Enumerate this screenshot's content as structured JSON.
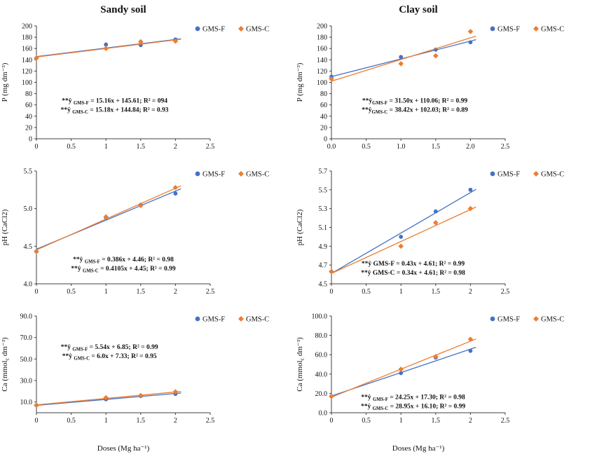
{
  "page": {
    "left_title": "Sandy soil",
    "right_title": "Clay soil"
  },
  "colors": {
    "series_gms_f": "#4472C4",
    "series_gms_c": "#ED7D31",
    "axis": "#404040",
    "text": "#111111"
  },
  "chart_data": [
    {
      "id": "p-sandy",
      "type": "scatter",
      "group": "Sandy soil",
      "ylabel": [
        {
          "t": "P (mg dm⁻³)"
        }
      ],
      "xlabel": "",
      "xlim": [
        0,
        2.5
      ],
      "ylim": [
        0,
        200
      ],
      "xticks": [
        {
          "v": 0,
          "l": "0"
        },
        {
          "v": 0.5,
          "l": "0.5"
        },
        {
          "v": 1,
          "l": "1"
        },
        {
          "v": 1.5,
          "l": "1.5"
        },
        {
          "v": 2,
          "l": "2"
        },
        {
          "v": 2.5,
          "l": "2.5"
        }
      ],
      "yticks": [
        {
          "v": 0,
          "l": "0"
        },
        {
          "v": 20,
          "l": "20"
        },
        {
          "v": 40,
          "l": "40"
        },
        {
          "v": 60,
          "l": "60"
        },
        {
          "v": 80,
          "l": "80"
        },
        {
          "v": 100,
          "l": "100"
        },
        {
          "v": 120,
          "l": "120"
        },
        {
          "v": 140,
          "l": "140"
        },
        {
          "v": 160,
          "l": "160"
        },
        {
          "v": 180,
          "l": "180"
        },
        {
          "v": 200,
          "l": "200"
        }
      ],
      "x": [
        0,
        1,
        1.5,
        2
      ],
      "series": [
        {
          "name": "GMS-F",
          "marker": "circle",
          "color": "#4472C4",
          "y": [
            143,
            167,
            166,
            176
          ],
          "fit": {
            "slope": 15.16,
            "intercept": 145.61,
            "r2": "094"
          }
        },
        {
          "name": "GMS-C",
          "marker": "diamond",
          "color": "#ED7D31",
          "y": [
            143,
            160,
            172,
            173
          ],
          "fit": {
            "slope": 15.18,
            "intercept": 144.84,
            "r2": "0.93"
          }
        }
      ],
      "annotation": {
        "fx": 0.45,
        "fy": 0.68,
        "lines": [
          [
            {
              "t": "**ŷ "
            },
            {
              "t": "GMS-F",
              "sub": true
            },
            {
              "t": " = 15.16x + 145.61; R² = 094"
            }
          ],
          [
            {
              "t": "**ŷ "
            },
            {
              "t": "GMS-C",
              "sub": true
            },
            {
              "t": " = 15.18x + 144.84; R² = 0.93"
            }
          ]
        ]
      }
    },
    {
      "id": "p-clay",
      "type": "scatter",
      "group": "Clay soil",
      "ylabel": [
        {
          "t": "P (mg dm⁻³)"
        }
      ],
      "xlabel": "",
      "xlim": [
        0,
        2.5
      ],
      "ylim": [
        0,
        200
      ],
      "xticks": [
        {
          "v": 0,
          "l": "0.0"
        },
        {
          "v": 0.5,
          "l": "0.5"
        },
        {
          "v": 1,
          "l": "1.0"
        },
        {
          "v": 1.5,
          "l": "1.5"
        },
        {
          "v": 2,
          "l": "2.0"
        },
        {
          "v": 2.5,
          "l": "2.5"
        }
      ],
      "yticks": [
        {
          "v": 0,
          "l": "0"
        },
        {
          "v": 20,
          "l": "20"
        },
        {
          "v": 40,
          "l": "40"
        },
        {
          "v": 60,
          "l": "60"
        },
        {
          "v": 80,
          "l": "80"
        },
        {
          "v": 100,
          "l": "100"
        },
        {
          "v": 120,
          "l": "120"
        },
        {
          "v": 140,
          "l": "140"
        },
        {
          "v": 160,
          "l": "160"
        },
        {
          "v": 180,
          "l": "180"
        },
        {
          "v": 200,
          "l": "200"
        }
      ],
      "x": [
        0,
        1,
        1.5,
        2
      ],
      "series": [
        {
          "name": "GMS-F",
          "marker": "circle",
          "color": "#4472C4",
          "y": [
            110,
            145,
            158,
            171
          ],
          "fit": {
            "slope": 31.5,
            "intercept": 110.06,
            "r2": "0.99"
          }
        },
        {
          "name": "GMS-C",
          "marker": "diamond",
          "color": "#ED7D31",
          "y": [
            106,
            133,
            147,
            190
          ],
          "fit": {
            "slope": 38.42,
            "intercept": 102.03,
            "r2": "0.89"
          }
        }
      ],
      "annotation": {
        "fx": 0.48,
        "fy": 0.68,
        "lines": [
          [
            {
              "t": "**ŷ"
            },
            {
              "t": "GMS-F",
              "sub": true
            },
            {
              "t": " = 31.50x + 110.06; R² = 0.99"
            }
          ],
          [
            {
              "t": "**ŷ"
            },
            {
              "t": "GMS-C",
              "sub": true
            },
            {
              "t": " = 38.42x + 102.03; R² = 0.89"
            }
          ]
        ]
      }
    },
    {
      "id": "ph-sandy",
      "type": "scatter",
      "group": "Sandy soil",
      "ylabel": [
        {
          "t": "pH (CaCl2)"
        }
      ],
      "xlabel": "",
      "xlim": [
        0,
        2.5
      ],
      "ylim": [
        4.0,
        5.5
      ],
      "xticks": [
        {
          "v": 0,
          "l": "0"
        },
        {
          "v": 0.5,
          "l": "0.5"
        },
        {
          "v": 1,
          "l": "1"
        },
        {
          "v": 1.5,
          "l": "1.5"
        },
        {
          "v": 2,
          "l": "2"
        },
        {
          "v": 2.5,
          "l": "2.5"
        }
      ],
      "yticks": [
        {
          "v": 4.0,
          "l": "4.0"
        },
        {
          "v": 4.5,
          "l": "4.5"
        },
        {
          "v": 5.0,
          "l": "5.0"
        },
        {
          "v": 5.5,
          "l": "5.5"
        }
      ],
      "x": [
        0,
        1,
        1.5,
        2
      ],
      "series": [
        {
          "name": "GMS-F",
          "marker": "circle",
          "color": "#4472C4",
          "y": [
            4.43,
            4.88,
            5.05,
            5.2
          ],
          "fit": {
            "slope": 0.386,
            "intercept": 4.46,
            "r2": "0.98"
          }
        },
        {
          "name": "GMS-C",
          "marker": "diamond",
          "color": "#ED7D31",
          "y": [
            4.43,
            4.89,
            5.04,
            5.28
          ],
          "fit": {
            "slope": 0.4105,
            "intercept": 4.45,
            "r2": "0.99"
          }
        }
      ],
      "annotation": {
        "fx": 0.5,
        "fy": 0.8,
        "lines": [
          [
            {
              "t": "**ŷ "
            },
            {
              "t": "GMS-F",
              "sub": true
            },
            {
              "t": " = 0.386x + 4.46; R² = 0.98"
            }
          ],
          [
            {
              "t": "**ŷ "
            },
            {
              "t": "GMS-C",
              "sub": true
            },
            {
              "t": " = 0.4105x + 4.45; R² = 0.99"
            }
          ]
        ]
      }
    },
    {
      "id": "ph-clay",
      "type": "scatter",
      "group": "Clay soil",
      "ylabel": [
        {
          "t": "pH (CaCl2)"
        }
      ],
      "xlabel": "",
      "xlim": [
        0,
        2.5
      ],
      "ylim": [
        4.5,
        5.7
      ],
      "xticks": [
        {
          "v": 0,
          "l": "0"
        },
        {
          "v": 0.5,
          "l": "0.5"
        },
        {
          "v": 1,
          "l": "1"
        },
        {
          "v": 1.5,
          "l": "1.5"
        },
        {
          "v": 2,
          "l": "2"
        },
        {
          "v": 2.5,
          "l": "2.5"
        }
      ],
      "yticks": [
        {
          "v": 4.5,
          "l": "4.5"
        },
        {
          "v": 4.7,
          "l": "4.7"
        },
        {
          "v": 4.9,
          "l": "4.9"
        },
        {
          "v": 5.1,
          "l": "5.1"
        },
        {
          "v": 5.3,
          "l": "5.3"
        },
        {
          "v": 5.5,
          "l": "5.5"
        },
        {
          "v": 5.7,
          "l": "5.7"
        }
      ],
      "x": [
        0,
        1,
        1.5,
        2
      ],
      "series": [
        {
          "name": "GMS-F",
          "marker": "circle",
          "color": "#4472C4",
          "y": [
            4.63,
            5.0,
            5.27,
            5.5
          ],
          "fit": {
            "slope": 0.43,
            "intercept": 4.61,
            "r2": "0.99"
          }
        },
        {
          "name": "GMS-C",
          "marker": "diamond",
          "color": "#ED7D31",
          "y": [
            4.63,
            4.9,
            5.15,
            5.3
          ],
          "fit": {
            "slope": 0.34,
            "intercept": 4.61,
            "r2": "0.98"
          }
        }
      ],
      "annotation": {
        "fx": 0.47,
        "fy": 0.84,
        "lines": [
          [
            {
              "t": "**ŷ GMS-F = 0.43x + 4.61; R² = 0.99"
            }
          ],
          [
            {
              "t": "**ŷ GMS-C = 0.34x + 4.61; R² = 0.98"
            }
          ]
        ]
      }
    },
    {
      "id": "ca-sandy",
      "type": "scatter",
      "group": "Sandy soil",
      "ylabel": [
        {
          "t": "Ca (mmol"
        },
        {
          "t": "c",
          "sub": true
        },
        {
          "t": " dm⁻³)"
        }
      ],
      "xlabel": "Doses (Mg ha⁻¹)",
      "xlim": [
        0,
        2.5
      ],
      "ylim": [
        0,
        90
      ],
      "xticks": [
        {
          "v": 0,
          "l": "0"
        },
        {
          "v": 0.5,
          "l": "0.5"
        },
        {
          "v": 1,
          "l": "1"
        },
        {
          "v": 1.5,
          "l": "1.5"
        },
        {
          "v": 2,
          "l": "2"
        },
        {
          "v": 2.5,
          "l": "2.5"
        }
      ],
      "yticks": [
        {
          "v": 10,
          "l": "10.0"
        },
        {
          "v": 30,
          "l": "30.0"
        },
        {
          "v": 50,
          "l": "50.0"
        },
        {
          "v": 70,
          "l": "70.0"
        },
        {
          "v": 90,
          "l": "90.0"
        }
      ],
      "x": [
        0,
        1,
        1.5,
        2
      ],
      "series": [
        {
          "name": "GMS-F",
          "marker": "circle",
          "color": "#4472C4",
          "y": [
            7,
            12.5,
            15.5,
            17.5
          ],
          "fit": {
            "slope": 5.54,
            "intercept": 6.85,
            "r2": "0.99"
          }
        },
        {
          "name": "GMS-C",
          "marker": "diamond",
          "color": "#ED7D31",
          "y": [
            7,
            14,
            16,
            19.5
          ],
          "fit": {
            "slope": 6.0,
            "intercept": 7.33,
            "r2": "0.95"
          }
        }
      ],
      "annotation": {
        "fx": 0.42,
        "fy": 0.34,
        "lines": [
          [
            {
              "t": "**ŷ "
            },
            {
              "t": "GMS-F",
              "sub": true
            },
            {
              "t": " = 5.54x + 6.85; R² = 0.99"
            }
          ],
          [
            {
              "t": "**ŷ "
            },
            {
              "t": "GMS-C",
              "sub": true
            },
            {
              "t": " = 6.0x + 7.33; R² = 0.95"
            }
          ]
        ]
      }
    },
    {
      "id": "ca-clay",
      "type": "scatter",
      "group": "Clay soil",
      "ylabel": [
        {
          "t": "Ca (mmol"
        },
        {
          "t": "c",
          "sub": true
        },
        {
          "t": " dm⁻³)"
        }
      ],
      "xlabel": "Doses (Mg ha⁻¹)",
      "xlim": [
        0,
        2.5
      ],
      "ylim": [
        0,
        100
      ],
      "xticks": [
        {
          "v": 0,
          "l": "0"
        },
        {
          "v": 0.5,
          "l": "0.5"
        },
        {
          "v": 1,
          "l": "1"
        },
        {
          "v": 1.5,
          "l": "1.5"
        },
        {
          "v": 2,
          "l": "2"
        },
        {
          "v": 2.5,
          "l": "2.5"
        }
      ],
      "yticks": [
        {
          "v": 0,
          "l": "0.0"
        },
        {
          "v": 20,
          "l": "20.0"
        },
        {
          "v": 40,
          "l": "40.0"
        },
        {
          "v": 60,
          "l": "60.0"
        },
        {
          "v": 80,
          "l": "80.0"
        },
        {
          "v": 100,
          "l": "100.0"
        }
      ],
      "x": [
        0,
        1,
        1.5,
        2
      ],
      "series": [
        {
          "name": "GMS-F",
          "marker": "circle",
          "color": "#4472C4",
          "y": [
            17,
            41,
            57,
            64
          ],
          "fit": {
            "slope": 24.25,
            "intercept": 17.3,
            "r2": "0.98"
          }
        },
        {
          "name": "GMS-C",
          "marker": "diamond",
          "color": "#ED7D31",
          "y": [
            17,
            45,
            58,
            76
          ],
          "fit": {
            "slope": 28.95,
            "intercept": 16.1,
            "r2": "0.99"
          }
        }
      ],
      "annotation": {
        "fx": 0.47,
        "fy": 0.86,
        "lines": [
          [
            {
              "t": "**ŷ "
            },
            {
              "t": "GMS-F",
              "sub": true
            },
            {
              "t": " = 24.25x + 17.30; R² = 0.98"
            }
          ],
          [
            {
              "t": "**ŷ "
            },
            {
              "t": "GMS-C",
              "sub": true
            },
            {
              "t": " = 28.95x + 16.10; R² = 0.99"
            }
          ]
        ]
      }
    }
  ]
}
